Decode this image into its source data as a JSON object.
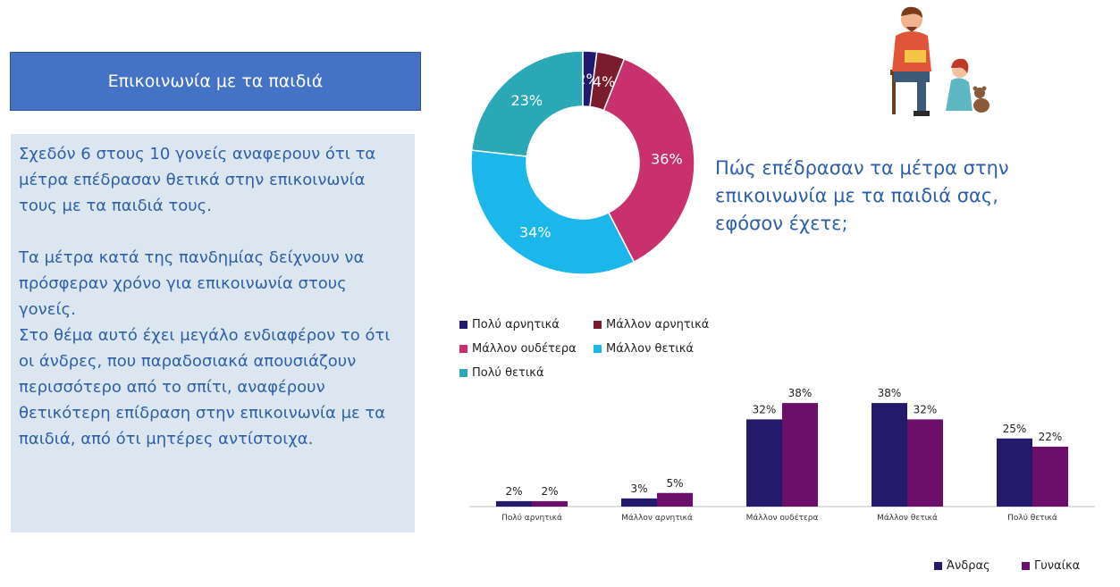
{
  "title": "Επικοινωνία με τα παιδιά",
  "paragraphs": [
    "Σχεδόν 6 στους 10 γονείς αναφερουν ότι τα μέτρα επέδρασαν θετικά στην επικοινωνία τους με τα παιδιά τους.",
    "Τα μέτρα κατά της πανδημίας δείχνουν να πρόσφεραν χρόνο για επικοινωνία στους γονείς.",
    "Στο θέμα αυτό έχει μεγάλο ενδιαφέρον το ότι οι άνδρες, που παραδοσιακά απουσιάζουν περισσότερο από το σπίτι, αναφέρουν θετικότερη επίδραση στην επικοινωνία με τα παιδιά, από ότι μητέρες αντίστοιχα."
  ],
  "question": "Πώς επέδρασαν τα μέτρα στην επικοινωνία με τα παιδιά σας, εφόσον έχετε;",
  "chart_data": [
    {
      "type": "pie",
      "variant": "donut",
      "categories": [
        "Πολύ αρνητικά",
        "Μάλλον αρνητικά",
        "Μάλλον ουδέτερα",
        "Μάλλον θετικά",
        "Πολύ θετικά"
      ],
      "values": [
        2,
        4,
        36,
        34,
        23
      ],
      "labels": [
        "2%",
        "4%",
        "36%",
        "34%",
        "23%"
      ],
      "colors": [
        "#1f1a6e",
        "#7b1c2e",
        "#c8306e",
        "#1bb7ea",
        "#2aa8b5"
      ],
      "legend_position": "bottom"
    },
    {
      "type": "bar",
      "categories": [
        "Πολύ αρνητικά",
        "Μάλλον αρνητικά",
        "Μάλλον ουδέτερα",
        "Μάλλον θετικά",
        "Πολύ θετικά"
      ],
      "series": [
        {
          "name": "Άνδρας",
          "values": [
            2,
            3,
            32,
            38,
            25
          ],
          "labels": [
            "2%",
            "3%",
            "32%",
            "38%",
            "25%"
          ],
          "color": "#231a6b"
        },
        {
          "name": "Γυναίκα",
          "values": [
            2,
            5,
            38,
            32,
            22
          ],
          "labels": [
            "2%",
            "5%",
            "38%",
            "32%",
            "22%"
          ],
          "color": "#6b0f6b"
        }
      ],
      "ylim": [
        0,
        40
      ],
      "legend_position": "bottom-right"
    }
  ]
}
